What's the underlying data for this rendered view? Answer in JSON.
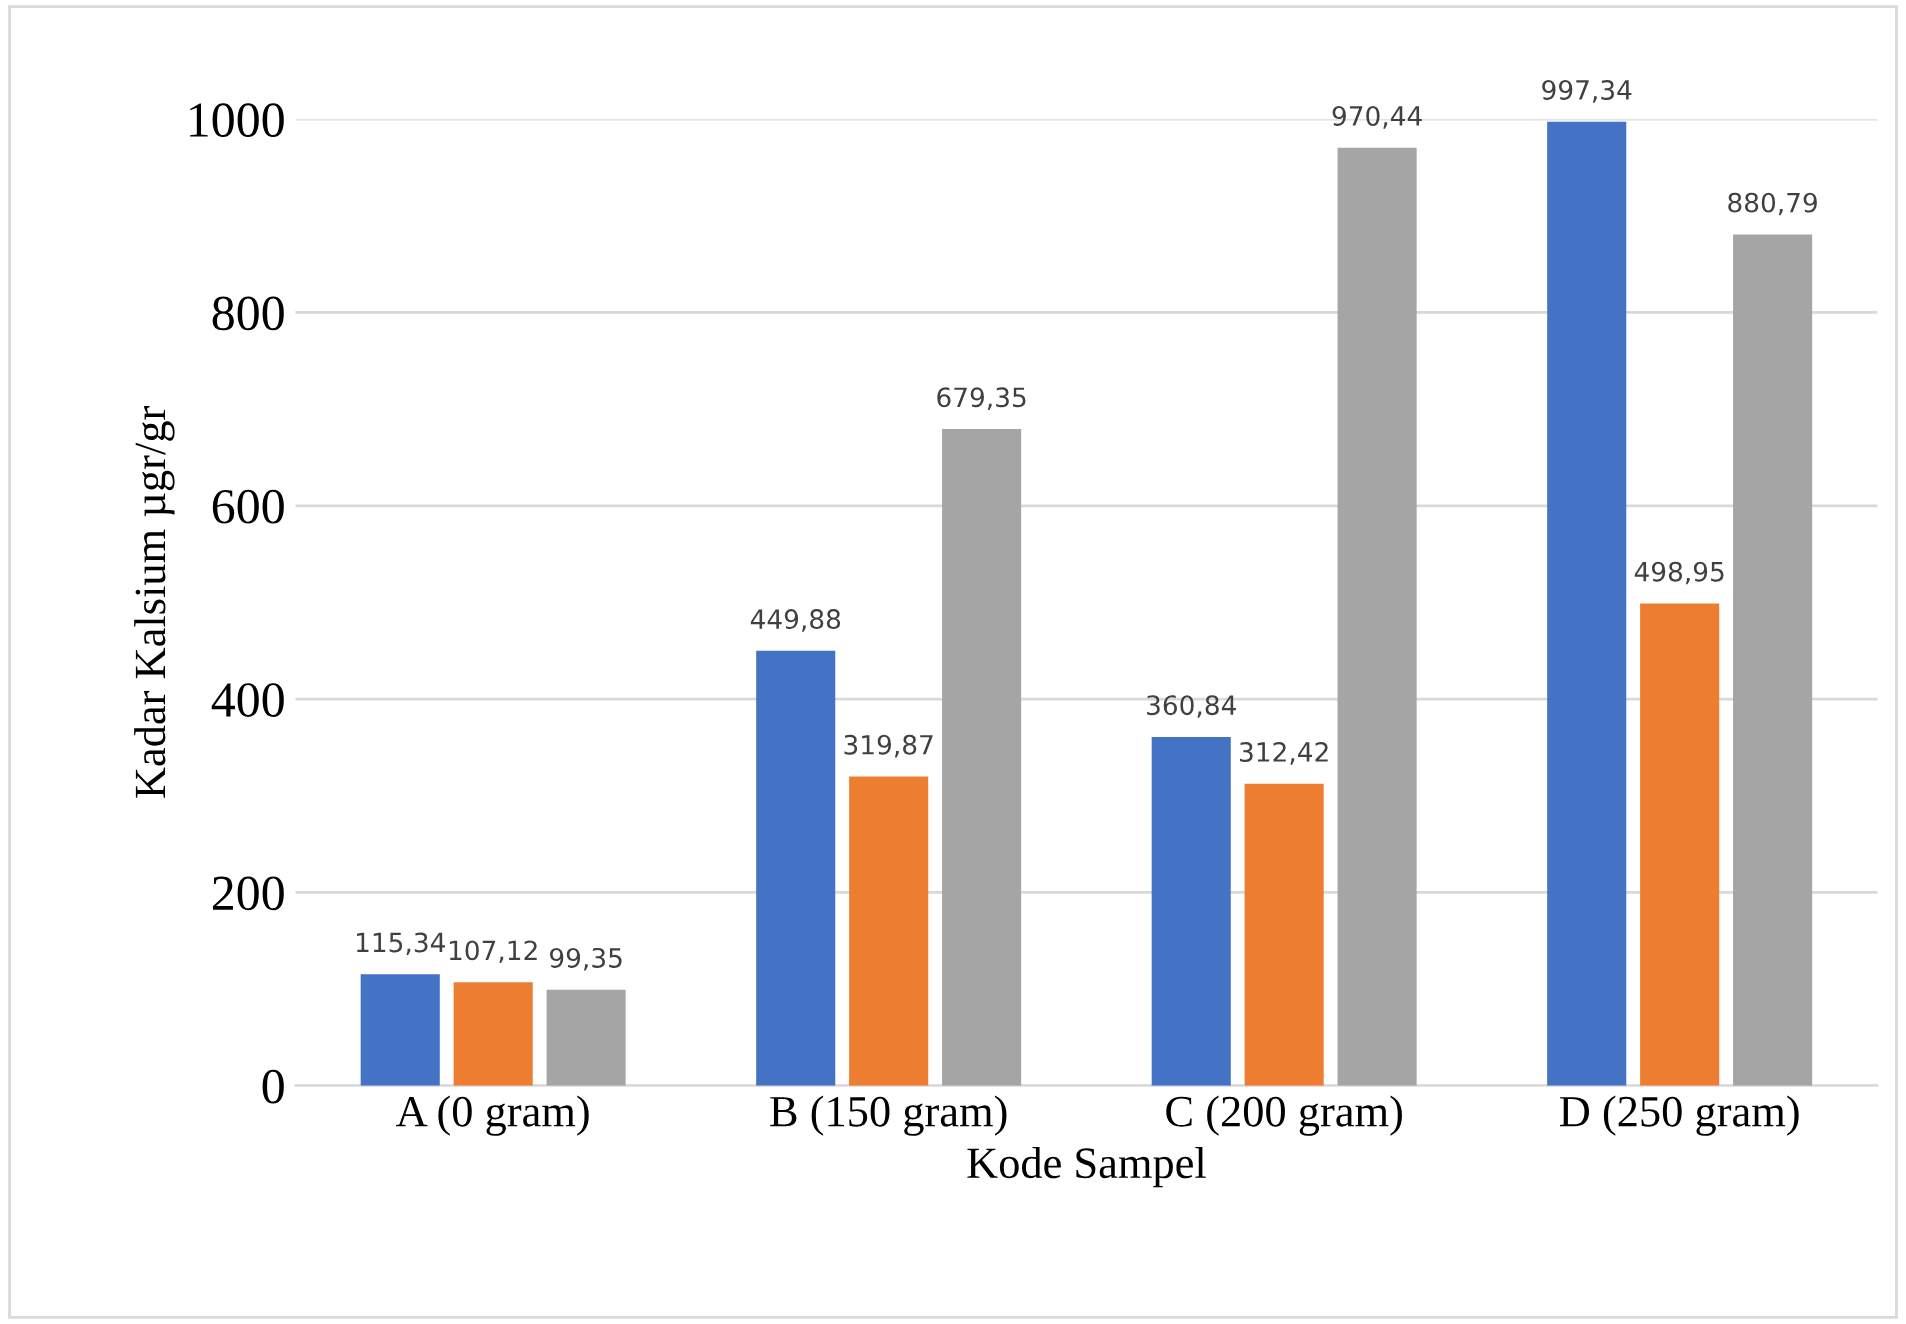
{
  "chart_data": {
    "type": "bar",
    "xlabel": "Kode Sampel",
    "ylabel": "Kadar Kalsium µgr/gr",
    "categories": [
      "A (0 gram)",
      "B (150 gram)",
      "C (200 gram)",
      "D (250 gram)"
    ],
    "series": [
      {
        "color": "#4472c4",
        "values": [
          115.34,
          449.88,
          360.84,
          997.34
        ],
        "value_labels": [
          "115,34",
          "449,88",
          "360,84",
          "997,34"
        ]
      },
      {
        "color": "#ed7d31",
        "values": [
          107.12,
          319.87,
          312.42,
          498.95
        ],
        "value_labels": [
          "107,12",
          "319,87",
          "312,42",
          "498,95"
        ]
      },
      {
        "color": "#a5a5a5",
        "values": [
          99.35,
          679.35,
          970.44,
          880.79
        ],
        "value_labels": [
          "99,35",
          "679,35",
          "970,44",
          "880,79"
        ]
      }
    ],
    "ylim": [
      0,
      1000
    ],
    "yticks": [
      0,
      200,
      400,
      600,
      800,
      1000
    ],
    "grid": "y"
  }
}
